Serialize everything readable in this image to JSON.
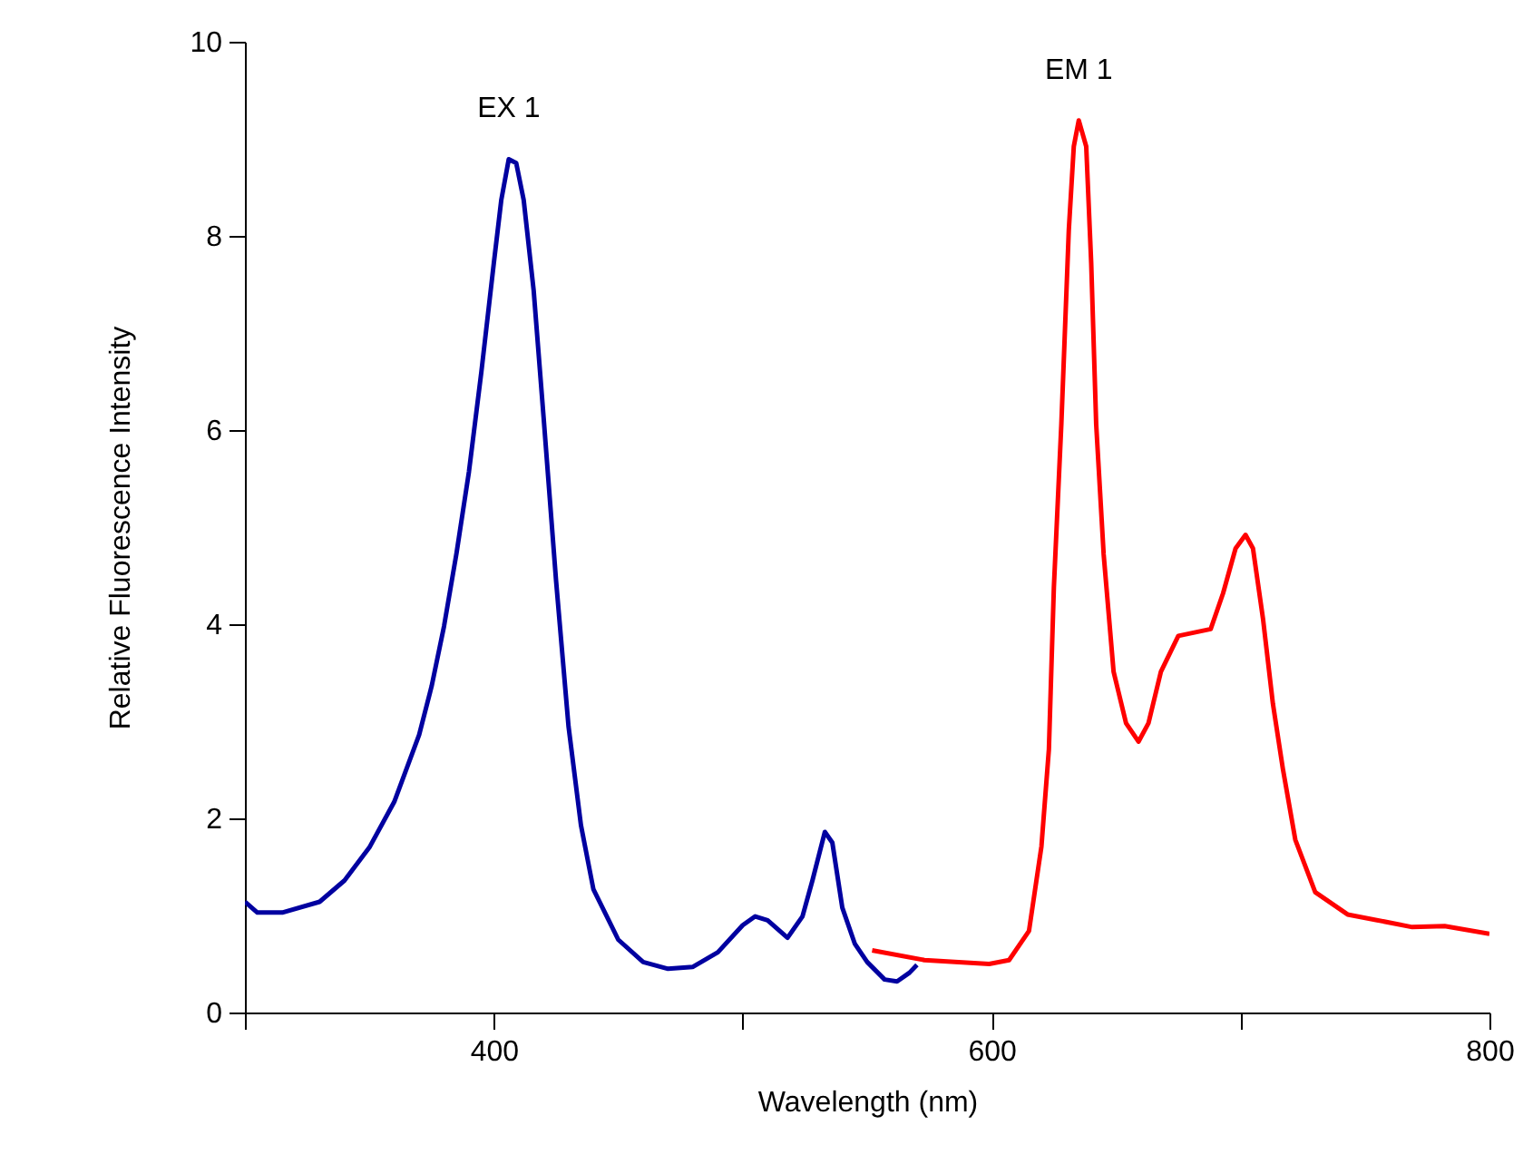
{
  "chart_data": {
    "type": "line",
    "xlabel": "Wavelength (nm)",
    "ylabel": "Relative Fluorescence Intensity",
    "xlim": [
      300,
      800
    ],
    "ylim": [
      0,
      10
    ],
    "xticks": [
      {
        "value": 300,
        "label": null
      },
      400,
      {
        "value": 500,
        "label": null
      },
      600,
      {
        "value": 700,
        "label": null
      },
      800
    ],
    "yticks": [
      0,
      2,
      4,
      6,
      8,
      10
    ],
    "marker": "none",
    "line_style": "solid",
    "series": [
      {
        "name": "EX 1",
        "color": "#0000a0",
        "x": [
          300,
          305,
          315,
          330,
          340,
          350,
          360,
          370,
          375,
          380,
          385,
          390,
          395,
          400,
          403,
          406,
          409,
          412,
          416,
          420,
          425,
          430,
          435,
          440,
          450,
          460,
          470,
          480,
          490,
          500,
          505,
          510,
          518,
          524,
          528,
          533,
          536,
          540,
          545,
          550,
          557,
          562,
          567,
          570
        ],
        "values": [
          1.14,
          1.03,
          1.03,
          1.14,
          1.36,
          1.7,
          2.17,
          2.86,
          3.36,
          3.98,
          4.73,
          5.57,
          6.6,
          7.72,
          8.37,
          8.79,
          8.75,
          8.37,
          7.44,
          6.13,
          4.45,
          2.95,
          1.93,
          1.27,
          0.75,
          0.52,
          0.45,
          0.47,
          0.62,
          0.9,
          0.99,
          0.95,
          0.77,
          0.99,
          1.36,
          1.86,
          1.75,
          1.08,
          0.71,
          0.52,
          0.34,
          0.32,
          0.41,
          0.49
        ]
      },
      {
        "name": "EM 1",
        "color": "#ff0000",
        "x": [
          552,
          573,
          599,
          607,
          615,
          620,
          623,
          625,
          628,
          631,
          633,
          635,
          638,
          640,
          642,
          645,
          649,
          654,
          659,
          663,
          668,
          675,
          688,
          693,
          698,
          702,
          705,
          709,
          713,
          717,
          722,
          730,
          743,
          769,
          782,
          800
        ],
        "values": [
          0.64,
          0.54,
          0.5,
          0.54,
          0.84,
          1.71,
          2.71,
          4.38,
          6.06,
          8.06,
          8.92,
          9.19,
          8.92,
          7.72,
          6.06,
          4.72,
          3.51,
          2.98,
          2.79,
          2.98,
          3.51,
          3.88,
          3.95,
          4.32,
          4.78,
          4.92,
          4.78,
          4.06,
          3.18,
          2.51,
          1.78,
          1.24,
          1.01,
          0.88,
          0.89,
          0.81
        ]
      }
    ]
  }
}
